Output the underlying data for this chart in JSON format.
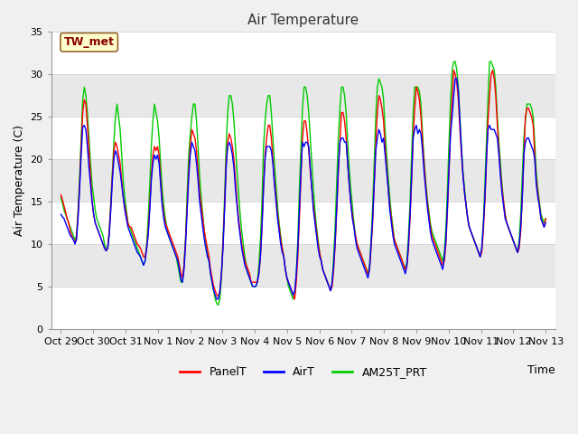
{
  "title": "Air Temperature",
  "ylabel": "Air Temperature (C)",
  "xlabel": "Time",
  "ylim": [
    0,
    35
  ],
  "figure_color": "#f0f0f0",
  "plot_bg_color": "#e8e8e8",
  "band_color_light": "#ffffff",
  "band_color_dark": "#e8e8e8",
  "station_label": "TW_met",
  "legend_labels": [
    "PanelT",
    "AirT",
    "AM25T_PRT"
  ],
  "legend_colors": [
    "#ff0000",
    "#0000ff",
    "#00cc00"
  ],
  "xtick_labels": [
    "Oct 29",
    "Oct 30",
    "Oct 31",
    "Nov 1",
    "Nov 2",
    "Nov 3",
    "Nov 4",
    "Nov 5",
    "Nov 6",
    "Nov 7",
    "Nov 8",
    "Nov 9",
    "Nov 10",
    "Nov 11",
    "Nov 12",
    "Nov 13"
  ],
  "ytick_vals": [
    0,
    5,
    10,
    15,
    20,
    25,
    30,
    35
  ],
  "data_panelT": [
    15.8,
    15.2,
    14.5,
    13.8,
    13.0,
    12.5,
    11.5,
    11.0,
    10.5,
    10.2,
    10.8,
    13.5,
    17.0,
    21.5,
    25.5,
    27.0,
    26.5,
    24.0,
    21.0,
    18.0,
    15.0,
    13.5,
    12.5,
    12.0,
    11.5,
    11.0,
    10.5,
    10.0,
    9.5,
    9.2,
    9.5,
    11.5,
    14.5,
    18.0,
    21.0,
    22.0,
    21.5,
    20.5,
    19.5,
    17.5,
    15.5,
    14.5,
    13.5,
    12.5,
    12.0,
    12.0,
    11.5,
    11.0,
    10.5,
    10.0,
    9.8,
    9.5,
    9.0,
    8.5,
    8.5,
    9.5,
    11.5,
    14.5,
    18.0,
    20.5,
    21.5,
    21.0,
    21.5,
    20.5,
    17.5,
    15.0,
    13.5,
    12.5,
    12.0,
    11.5,
    11.0,
    10.5,
    10.0,
    9.5,
    9.0,
    8.5,
    7.5,
    6.5,
    6.0,
    7.5,
    10.5,
    14.5,
    18.5,
    21.5,
    23.5,
    23.0,
    22.5,
    21.0,
    18.5,
    16.0,
    14.5,
    13.0,
    11.5,
    10.5,
    9.5,
    8.5,
    7.0,
    6.0,
    5.0,
    4.5,
    4.0,
    3.8,
    4.5,
    6.5,
    10.0,
    14.5,
    19.5,
    22.0,
    23.0,
    22.5,
    21.5,
    20.0,
    17.5,
    15.0,
    13.0,
    11.5,
    10.0,
    9.0,
    8.0,
    7.5,
    7.0,
    6.5,
    5.5,
    5.5,
    5.5,
    5.5,
    5.5,
    6.5,
    8.5,
    12.0,
    17.0,
    20.5,
    22.5,
    24.0,
    24.0,
    22.5,
    20.0,
    17.5,
    15.5,
    13.5,
    12.0,
    10.5,
    9.5,
    8.5,
    7.0,
    6.0,
    5.5,
    5.0,
    4.5,
    4.0,
    3.5,
    5.5,
    8.5,
    13.0,
    18.0,
    22.5,
    24.5,
    24.5,
    23.0,
    21.0,
    18.5,
    16.5,
    14.5,
    13.0,
    11.5,
    10.0,
    9.0,
    8.0,
    7.0,
    6.5,
    6.0,
    5.5,
    5.0,
    4.5,
    5.0,
    7.0,
    10.0,
    14.0,
    18.5,
    22.0,
    25.5,
    25.5,
    24.5,
    22.5,
    19.5,
    17.0,
    14.8,
    13.5,
    12.0,
    11.0,
    10.0,
    9.5,
    9.0,
    8.5,
    8.0,
    7.5,
    7.0,
    6.5,
    7.0,
    9.5,
    12.5,
    17.0,
    21.5,
    25.5,
    27.5,
    27.0,
    26.0,
    24.5,
    21.5,
    19.0,
    16.5,
    14.5,
    13.0,
    11.5,
    10.5,
    10.0,
    9.5,
    9.0,
    8.5,
    8.0,
    7.5,
    7.0,
    7.5,
    9.5,
    13.0,
    17.5,
    22.5,
    26.0,
    28.5,
    28.0,
    27.0,
    25.0,
    22.0,
    19.5,
    17.0,
    15.0,
    13.5,
    12.0,
    11.0,
    10.5,
    10.0,
    9.5,
    9.0,
    8.5,
    8.0,
    7.5,
    8.0,
    10.0,
    14.0,
    18.5,
    23.5,
    27.0,
    30.5,
    30.0,
    29.0,
    27.0,
    23.5,
    20.5,
    18.0,
    16.0,
    14.5,
    13.0,
    12.0,
    11.5,
    11.0,
    10.5,
    10.0,
    9.5,
    9.0,
    8.5,
    9.0,
    11.5,
    15.0,
    19.5,
    24.5,
    27.5,
    30.0,
    30.5,
    29.5,
    27.5,
    24.0,
    21.0,
    18.5,
    16.5,
    15.0,
    13.5,
    12.5,
    12.0,
    11.5,
    11.0,
    10.5,
    10.0,
    9.5,
    9.0,
    9.5,
    11.5,
    15.5,
    20.0,
    25.0,
    26.0,
    26.0,
    25.5,
    25.0,
    24.0,
    20.5,
    17.5,
    16.0,
    14.5,
    13.0,
    12.5,
    12.0,
    13.0
  ],
  "data_airT": [
    13.5,
    13.2,
    13.0,
    12.5,
    12.0,
    11.5,
    11.0,
    10.8,
    10.5,
    10.0,
    10.5,
    13.0,
    16.5,
    20.5,
    23.8,
    24.0,
    23.5,
    21.5,
    19.0,
    17.0,
    15.0,
    13.5,
    12.5,
    12.0,
    11.5,
    11.0,
    10.5,
    10.0,
    9.5,
    9.2,
    9.5,
    11.0,
    14.0,
    17.5,
    20.0,
    21.0,
    20.5,
    19.5,
    18.5,
    17.0,
    15.5,
    14.0,
    13.0,
    12.0,
    11.5,
    11.0,
    10.5,
    10.0,
    9.5,
    9.0,
    8.8,
    8.5,
    8.0,
    7.5,
    8.0,
    9.5,
    11.0,
    14.0,
    17.5,
    19.5,
    20.5,
    20.0,
    20.5,
    19.5,
    17.0,
    14.5,
    13.0,
    12.0,
    11.5,
    11.0,
    10.5,
    10.0,
    9.5,
    9.0,
    8.5,
    8.0,
    7.0,
    5.8,
    5.5,
    7.0,
    10.0,
    14.0,
    18.0,
    20.5,
    22.0,
    21.5,
    21.0,
    19.5,
    17.5,
    15.0,
    13.5,
    12.0,
    10.5,
    9.5,
    8.5,
    8.0,
    6.5,
    5.5,
    4.5,
    4.0,
    3.5,
    3.5,
    4.5,
    6.5,
    9.5,
    14.0,
    19.0,
    21.5,
    22.0,
    21.5,
    20.5,
    19.0,
    16.5,
    14.5,
    12.5,
    11.0,
    9.5,
    8.5,
    7.5,
    7.0,
    6.5,
    6.0,
    5.5,
    5.0,
    5.0,
    5.0,
    5.5,
    6.5,
    8.5,
    12.0,
    16.5,
    20.0,
    21.5,
    21.5,
    21.5,
    21.0,
    19.5,
    17.0,
    15.0,
    13.0,
    11.5,
    10.0,
    9.0,
    8.5,
    7.0,
    6.0,
    5.5,
    5.0,
    4.5,
    4.0,
    4.5,
    6.5,
    9.5,
    14.0,
    18.5,
    22.0,
    21.5,
    22.0,
    22.0,
    21.5,
    19.0,
    16.5,
    14.0,
    12.5,
    11.0,
    9.5,
    8.5,
    8.0,
    7.0,
    6.5,
    6.0,
    5.5,
    5.0,
    4.5,
    5.5,
    7.5,
    10.5,
    14.5,
    19.0,
    22.0,
    22.5,
    22.5,
    22.0,
    22.0,
    19.5,
    17.0,
    14.8,
    13.0,
    12.0,
    10.5,
    9.5,
    9.0,
    8.5,
    8.0,
    7.5,
    7.0,
    6.5,
    6.0,
    7.0,
    10.0,
    13.0,
    17.0,
    21.0,
    22.5,
    23.5,
    23.0,
    22.0,
    22.5,
    20.5,
    18.5,
    16.5,
    14.0,
    12.5,
    11.0,
    10.0,
    9.5,
    9.0,
    8.5,
    8.0,
    7.5,
    7.0,
    6.5,
    7.5,
    10.0,
    13.5,
    18.0,
    22.5,
    23.5,
    24.0,
    23.0,
    23.5,
    23.0,
    21.0,
    18.5,
    16.5,
    14.5,
    13.0,
    11.5,
    10.5,
    10.0,
    9.5,
    9.0,
    8.5,
    8.0,
    7.5,
    7.0,
    8.5,
    10.5,
    14.5,
    19.0,
    23.0,
    25.0,
    27.5,
    29.5,
    29.5,
    28.0,
    24.5,
    21.0,
    18.0,
    16.0,
    14.5,
    13.0,
    12.0,
    11.5,
    11.0,
    10.5,
    10.0,
    9.5,
    9.0,
    8.5,
    9.5,
    12.0,
    15.5,
    20.0,
    23.5,
    24.0,
    23.5,
    23.5,
    23.5,
    23.0,
    22.5,
    20.5,
    18.0,
    16.0,
    14.5,
    13.0,
    12.5,
    12.0,
    11.5,
    11.0,
    10.5,
    10.0,
    9.5,
    9.0,
    10.0,
    12.0,
    15.5,
    20.5,
    22.0,
    22.5,
    22.5,
    22.0,
    21.5,
    21.0,
    20.0,
    17.0,
    15.5,
    14.5,
    13.0,
    12.5,
    12.0,
    12.5
  ],
  "data_am25T": [
    15.5,
    14.8,
    14.0,
    13.5,
    13.0,
    12.5,
    12.0,
    11.5,
    11.0,
    10.5,
    11.0,
    14.0,
    18.0,
    22.5,
    27.0,
    28.5,
    27.5,
    25.5,
    22.5,
    19.5,
    17.0,
    15.5,
    14.0,
    13.0,
    12.5,
    12.0,
    11.5,
    11.0,
    10.0,
    9.5,
    9.5,
    11.5,
    15.0,
    18.5,
    22.0,
    25.0,
    26.5,
    25.0,
    23.5,
    20.5,
    17.5,
    15.5,
    14.0,
    12.5,
    12.0,
    11.5,
    11.0,
    10.5,
    10.0,
    9.5,
    9.0,
    8.5,
    8.0,
    7.5,
    8.0,
    10.0,
    13.0,
    17.0,
    21.5,
    24.5,
    26.5,
    25.5,
    24.5,
    22.5,
    19.5,
    16.5,
    14.5,
    13.0,
    12.0,
    11.0,
    10.5,
    10.0,
    9.5,
    9.0,
    8.5,
    7.5,
    6.5,
    5.5,
    5.5,
    7.5,
    11.0,
    16.0,
    20.5,
    23.0,
    25.0,
    26.5,
    26.5,
    24.5,
    21.5,
    18.0,
    15.5,
    13.5,
    11.5,
    10.0,
    9.0,
    8.0,
    6.5,
    5.5,
    4.5,
    3.5,
    3.0,
    2.8,
    3.5,
    6.0,
    10.5,
    15.5,
    21.5,
    25.5,
    27.5,
    27.5,
    26.5,
    24.5,
    21.5,
    18.5,
    16.0,
    13.5,
    11.5,
    10.0,
    8.5,
    7.5,
    6.5,
    6.0,
    5.5,
    5.0,
    5.0,
    5.0,
    5.5,
    7.5,
    10.5,
    15.0,
    21.5,
    24.5,
    26.5,
    27.5,
    27.5,
    25.5,
    22.5,
    19.5,
    17.0,
    14.5,
    12.5,
    11.0,
    9.5,
    8.5,
    7.0,
    6.0,
    5.0,
    4.5,
    4.0,
    3.5,
    4.0,
    6.5,
    10.5,
    16.5,
    21.5,
    26.0,
    28.5,
    28.5,
    27.5,
    25.5,
    22.5,
    19.5,
    16.5,
    14.0,
    12.0,
    10.5,
    9.0,
    8.0,
    7.0,
    6.5,
    6.0,
    5.5,
    5.0,
    4.5,
    5.5,
    8.5,
    12.5,
    17.5,
    22.5,
    26.0,
    28.5,
    28.5,
    27.5,
    25.5,
    22.0,
    19.0,
    16.5,
    14.5,
    12.5,
    11.0,
    10.0,
    9.5,
    9.0,
    8.5,
    8.0,
    7.5,
    7.0,
    6.5,
    7.5,
    10.5,
    14.5,
    19.5,
    25.0,
    28.5,
    29.5,
    29.0,
    28.5,
    27.0,
    23.5,
    20.5,
    18.0,
    15.5,
    13.5,
    12.0,
    10.5,
    10.0,
    9.5,
    9.0,
    8.5,
    8.0,
    7.5,
    7.0,
    8.0,
    11.0,
    15.0,
    20.5,
    25.5,
    28.5,
    28.5,
    28.5,
    28.0,
    26.5,
    23.0,
    20.0,
    17.5,
    15.5,
    14.0,
    12.5,
    11.5,
    11.0,
    10.5,
    10.0,
    9.5,
    9.0,
    8.5,
    8.0,
    9.0,
    12.0,
    16.5,
    22.0,
    27.0,
    30.5,
    31.5,
    31.5,
    30.5,
    28.5,
    25.0,
    21.5,
    18.5,
    16.5,
    14.5,
    13.0,
    12.0,
    11.5,
    11.0,
    10.5,
    10.0,
    9.5,
    9.0,
    8.5,
    9.5,
    12.5,
    17.0,
    22.0,
    27.0,
    31.5,
    31.5,
    31.0,
    30.5,
    28.5,
    25.0,
    22.0,
    19.5,
    17.0,
    15.0,
    13.5,
    12.5,
    12.0,
    11.5,
    11.0,
    10.5,
    10.0,
    9.5,
    9.0,
    10.5,
    13.5,
    18.0,
    22.5,
    24.5,
    26.5,
    26.5,
    26.5,
    26.0,
    25.0,
    22.0,
    18.5,
    16.5,
    15.0,
    13.5,
    13.0,
    12.5,
    13.0
  ]
}
